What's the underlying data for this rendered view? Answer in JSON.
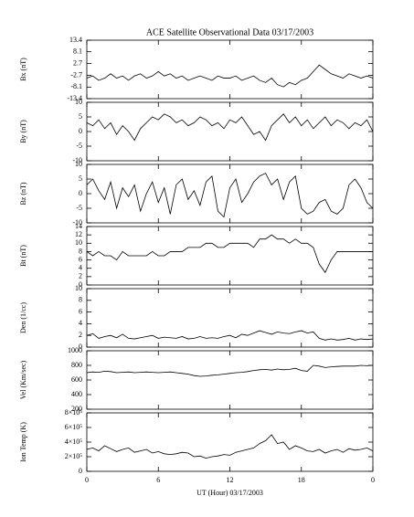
{
  "chart_data": [
    {
      "type": "line",
      "title": "ACE Satellite Observational Data   03/17/2003",
      "ylabel": "Bx (nT)",
      "xlim": [
        0,
        24
      ],
      "xticks": [
        0,
        6,
        12,
        18,
        {
          "value": 24,
          "label": "0"
        }
      ],
      "ylim": [
        -13.4,
        13.4
      ],
      "yticks": [
        -13.4,
        -8.1,
        -2.7,
        2.7,
        8.1,
        13.4
      ],
      "x": [
        0,
        0.5,
        1,
        1.5,
        2,
        2.5,
        3,
        3.5,
        4,
        4.5,
        5,
        5.5,
        6,
        6.5,
        7,
        7.5,
        8,
        8.5,
        9,
        9.5,
        10,
        10.5,
        11,
        11.5,
        12,
        12.5,
        13,
        13.5,
        14,
        14.5,
        15,
        15.5,
        16,
        16.5,
        17,
        17.5,
        18,
        18.5,
        19,
        19.5,
        20,
        20.5,
        21,
        21.5,
        22,
        22.5,
        23,
        23.5,
        24
      ],
      "series": [
        {
          "color": "#000000",
          "values": [
            -4,
            -3,
            -5,
            -4,
            -2,
            -4,
            -3,
            -5,
            -3,
            -2,
            -4,
            -3,
            -1,
            -3,
            -2,
            -4,
            -3,
            -5,
            -4,
            -3,
            -4,
            -5,
            -3,
            -4,
            -4,
            -3,
            -5,
            -4,
            -3,
            -5,
            -6,
            -4,
            -7,
            -8,
            -6,
            -7,
            -5,
            -4,
            -1,
            2,
            0,
            -2,
            -3,
            -4,
            -2,
            -3,
            -4,
            -3,
            -4
          ]
        }
      ]
    },
    {
      "type": "line",
      "ylabel": "By (nT)",
      "xlim": [
        0,
        24
      ],
      "xticks": [
        0,
        6,
        12,
        18,
        {
          "value": 24,
          "label": "0"
        }
      ],
      "ylim": [
        -10,
        10
      ],
      "yticks": [
        -10,
        -5,
        0,
        5,
        10
      ],
      "x": [
        0,
        0.5,
        1,
        1.5,
        2,
        2.5,
        3,
        3.5,
        4,
        4.5,
        5,
        5.5,
        6,
        6.5,
        7,
        7.5,
        8,
        8.5,
        9,
        9.5,
        10,
        10.5,
        11,
        11.5,
        12,
        12.5,
        13,
        13.5,
        14,
        14.5,
        15,
        15.5,
        16,
        16.5,
        17,
        17.5,
        18,
        18.5,
        19,
        19.5,
        20,
        20.5,
        21,
        21.5,
        22,
        22.5,
        23,
        23.5,
        24
      ],
      "series": [
        {
          "color": "#000000",
          "values": [
            3,
            2,
            4,
            1,
            3,
            -1,
            2,
            0,
            -3,
            1,
            3,
            5,
            4,
            6,
            5,
            3,
            4,
            2,
            3,
            5,
            4,
            2,
            3,
            1,
            4,
            3,
            5,
            2,
            -1,
            0,
            -3,
            2,
            4,
            6,
            3,
            5,
            2,
            4,
            1,
            3,
            5,
            2,
            4,
            3,
            1,
            3,
            2,
            4,
            0
          ]
        }
      ]
    },
    {
      "type": "line",
      "ylabel": "Bz (nT)",
      "xlim": [
        0,
        24
      ],
      "xticks": [
        0,
        6,
        12,
        18,
        {
          "value": 24,
          "label": "0"
        }
      ],
      "ylim": [
        -10,
        10
      ],
      "yticks": [
        -10,
        -5,
        0,
        5,
        10
      ],
      "x": [
        0,
        0.5,
        1,
        1.5,
        2,
        2.5,
        3,
        3.5,
        4,
        4.5,
        5,
        5.5,
        6,
        6.5,
        7,
        7.5,
        8,
        8.5,
        9,
        9.5,
        10,
        10.5,
        11,
        11.5,
        12,
        12.5,
        13,
        13.5,
        14,
        14.5,
        15,
        15.5,
        16,
        16.5,
        17,
        17.5,
        18,
        18.5,
        19,
        19.5,
        20,
        20.5,
        21,
        21.5,
        22,
        22.5,
        23,
        23.5,
        24
      ],
      "series": [
        {
          "color": "#000000",
          "values": [
            3,
            5,
            1,
            -2,
            4,
            -5,
            2,
            -1,
            3,
            -6,
            0,
            4,
            -3,
            2,
            -7,
            3,
            5,
            -2,
            1,
            -4,
            4,
            6,
            -6,
            -8,
            2,
            5,
            -3,
            0,
            4,
            6,
            7,
            3,
            5,
            -2,
            4,
            6,
            -5,
            -7,
            -6,
            -3,
            -2,
            -6,
            -7,
            -5,
            3,
            5,
            2,
            -3,
            -5
          ]
        }
      ]
    },
    {
      "type": "line",
      "ylabel": "Bt (nT)",
      "xlim": [
        0,
        24
      ],
      "xticks": [
        0,
        6,
        12,
        18,
        {
          "value": 24,
          "label": "0"
        }
      ],
      "ylim": [
        0,
        14
      ],
      "yticks": [
        0,
        2,
        4,
        6,
        8,
        10,
        12,
        14
      ],
      "x": [
        0,
        0.5,
        1,
        1.5,
        2,
        2.5,
        3,
        3.5,
        4,
        4.5,
        5,
        5.5,
        6,
        6.5,
        7,
        7.5,
        8,
        8.5,
        9,
        9.5,
        10,
        10.5,
        11,
        11.5,
        12,
        12.5,
        13,
        13.5,
        14,
        14.5,
        15,
        15.5,
        16,
        16.5,
        17,
        17.5,
        18,
        18.5,
        19,
        19.5,
        20,
        20.5,
        21,
        21.5,
        22,
        22.5,
        23,
        23.5,
        24
      ],
      "series": [
        {
          "color": "#000000",
          "values": [
            8,
            7,
            8,
            7,
            7,
            6,
            8,
            7,
            7,
            7,
            7,
            8,
            7,
            7,
            8,
            8,
            8,
            9,
            9,
            9,
            10,
            10,
            9,
            9,
            10,
            10,
            10,
            10,
            9,
            11,
            11,
            12,
            11,
            11,
            10,
            11,
            10,
            10,
            9,
            5,
            3,
            6,
            8,
            8,
            8,
            8,
            8,
            8,
            8
          ]
        }
      ]
    },
    {
      "type": "line",
      "ylabel": "Den (1/cc)",
      "xlim": [
        0,
        24
      ],
      "xticks": [
        0,
        6,
        12,
        18,
        {
          "value": 24,
          "label": "0"
        }
      ],
      "ylim": [
        0,
        10
      ],
      "yticks": [
        0,
        2,
        4,
        6,
        8,
        10
      ],
      "x": [
        0,
        0.5,
        1,
        1.5,
        2,
        2.5,
        3,
        3.5,
        4,
        4.5,
        5,
        5.5,
        6,
        6.5,
        7,
        7.5,
        8,
        8.5,
        9,
        9.5,
        10,
        10.5,
        11,
        11.5,
        12,
        12.5,
        13,
        13.5,
        14,
        14.5,
        15,
        15.5,
        16,
        16.5,
        17,
        17.5,
        18,
        18.5,
        19,
        19.5,
        20,
        20.5,
        21,
        21.5,
        22,
        22.5,
        23,
        23.5,
        24
      ],
      "series": [
        {
          "color": "#000000",
          "values": [
            2,
            2.3,
            1.5,
            1.8,
            2,
            1.6,
            2.2,
            1.5,
            1.4,
            1.6,
            1.8,
            2,
            1.5,
            1.7,
            1.6,
            1.5,
            1.8,
            1.4,
            1.5,
            1.8,
            1.5,
            1.6,
            1.5,
            1.8,
            2,
            1.6,
            2.2,
            2,
            2.4,
            2.8,
            2.5,
            2.2,
            2.6,
            2.4,
            2.3,
            2.6,
            2.8,
            2.4,
            2.6,
            1.5,
            1.2,
            1.4,
            1.2,
            1.3,
            1.5,
            1.2,
            1.4,
            1.3,
            1.4
          ]
        }
      ]
    },
    {
      "type": "line",
      "ylabel": "Vel (Km/sec)",
      "xlim": [
        0,
        24
      ],
      "xticks": [
        0,
        6,
        12,
        18,
        {
          "value": 24,
          "label": "0"
        }
      ],
      "ylim": [
        200,
        1000
      ],
      "yticks": [
        200,
        400,
        600,
        800,
        1000
      ],
      "x": [
        0,
        0.5,
        1,
        1.5,
        2,
        2.5,
        3,
        3.5,
        4,
        4.5,
        5,
        5.5,
        6,
        6.5,
        7,
        7.5,
        8,
        8.5,
        9,
        9.5,
        10,
        10.5,
        11,
        11.5,
        12,
        12.5,
        13,
        13.5,
        14,
        14.5,
        15,
        15.5,
        16,
        16.5,
        17,
        17.5,
        18,
        18.5,
        19,
        19.5,
        20,
        20.5,
        21,
        21.5,
        22,
        22.5,
        23,
        23.5,
        24
      ],
      "series": [
        {
          "color": "#000000",
          "values": [
            700,
            710,
            705,
            720,
            715,
            700,
            705,
            710,
            700,
            705,
            710,
            705,
            700,
            705,
            710,
            700,
            690,
            680,
            660,
            650,
            655,
            665,
            670,
            680,
            690,
            700,
            705,
            715,
            730,
            740,
            745,
            735,
            750,
            740,
            745,
            760,
            730,
            720,
            800,
            790,
            770,
            780,
            785,
            790,
            790,
            790,
            800,
            795,
            800
          ]
        }
      ]
    },
    {
      "type": "line",
      "ylabel": "Ion Temp (K)",
      "xlabel": "UT (Hour)   03/17/2003",
      "xlim": [
        0,
        24
      ],
      "xticks": [
        0,
        6,
        12,
        18,
        {
          "value": 24,
          "label": "0"
        }
      ],
      "ylim": [
        0,
        800000
      ],
      "yticks": [
        0,
        {
          "value": 200000,
          "label": "2×10⁵"
        },
        {
          "value": 400000,
          "label": "4×10⁵"
        },
        {
          "value": 600000,
          "label": "6×10⁵"
        },
        {
          "value": 800000,
          "label": "8×10⁵"
        }
      ],
      "x": [
        0,
        0.5,
        1,
        1.5,
        2,
        2.5,
        3,
        3.5,
        4,
        4.5,
        5,
        5.5,
        6,
        6.5,
        7,
        7.5,
        8,
        8.5,
        9,
        9.5,
        10,
        10.5,
        11,
        11.5,
        12,
        12.5,
        13,
        13.5,
        14,
        14.5,
        15,
        15.5,
        16,
        16.5,
        17,
        17.5,
        18,
        18.5,
        19,
        19.5,
        20,
        20.5,
        21,
        21.5,
        22,
        22.5,
        23,
        23.5,
        24
      ],
      "series": [
        {
          "color": "#000000",
          "values": [
            300000,
            320000,
            280000,
            350000,
            310000,
            270000,
            300000,
            320000,
            260000,
            280000,
            300000,
            250000,
            270000,
            240000,
            230000,
            240000,
            260000,
            250000,
            200000,
            210000,
            180000,
            200000,
            210000,
            230000,
            220000,
            260000,
            280000,
            300000,
            320000,
            380000,
            420000,
            500000,
            380000,
            400000,
            300000,
            350000,
            320000,
            280000,
            270000,
            300000,
            250000,
            280000,
            300000,
            260000,
            310000,
            290000,
            300000,
            320000,
            280000
          ]
        }
      ]
    }
  ]
}
